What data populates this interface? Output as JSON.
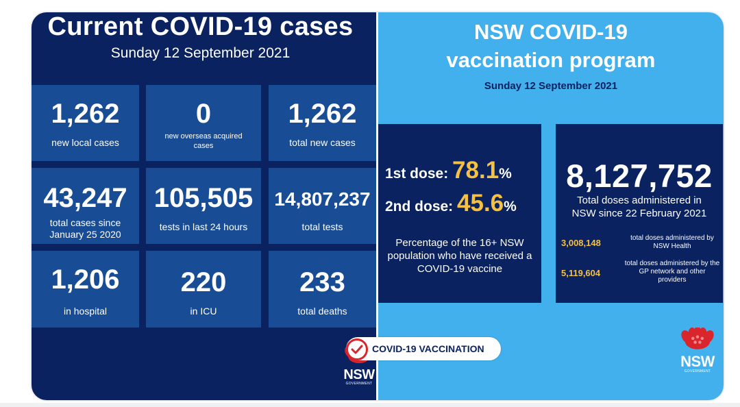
{
  "left": {
    "title": "Current COVID-19 cases",
    "date": "Sunday 12 September 2021",
    "tiles": [
      {
        "value": "1,262",
        "label": "new local cases"
      },
      {
        "value": "0",
        "label": "new overseas acquired cases"
      },
      {
        "value": "1,262",
        "label": "total new cases"
      },
      {
        "value": "43,247",
        "label": "total cases since January 25 2020"
      },
      {
        "value": "105,505",
        "label": "tests in last 24 hours"
      },
      {
        "value": "14,807,237",
        "label": "total tests"
      },
      {
        "value": "1,206",
        "label": "in hospital"
      },
      {
        "value": "220",
        "label": "in ICU"
      },
      {
        "value": "233",
        "label": "total deaths"
      }
    ]
  },
  "right": {
    "title_line1": "NSW COVID-19",
    "title_line2": "vaccination program",
    "date": "Sunday 12 September 2021",
    "first_dose_label": "1st dose:",
    "first_dose_value": "78.1",
    "second_dose_label": "2nd dose:",
    "second_dose_value": "45.6",
    "percent_sign": "%",
    "percentage_text": "Percentage of the 16+ NSW population who have received a COVID-19 vaccine",
    "total_doses": "8,127,752",
    "total_doses_label": "Total doses administered in NSW since 22 February 2021",
    "nsw_health_doses": "3,008,148",
    "nsw_health_label": "total doses administered by NSW Health",
    "gp_doses": "5,119,604",
    "gp_label": "total doses administered by the GP network and other providers",
    "badge_text": "COVID-19 VACCINATION"
  },
  "logo": {
    "word": "NSW",
    "sub": "GOVERNMENT"
  },
  "colors": {
    "navy": "#0b2260",
    "tile_blue": "#184c95",
    "sky_blue": "#41b0ec",
    "gold": "#f6c142",
    "red": "#d9252b"
  }
}
